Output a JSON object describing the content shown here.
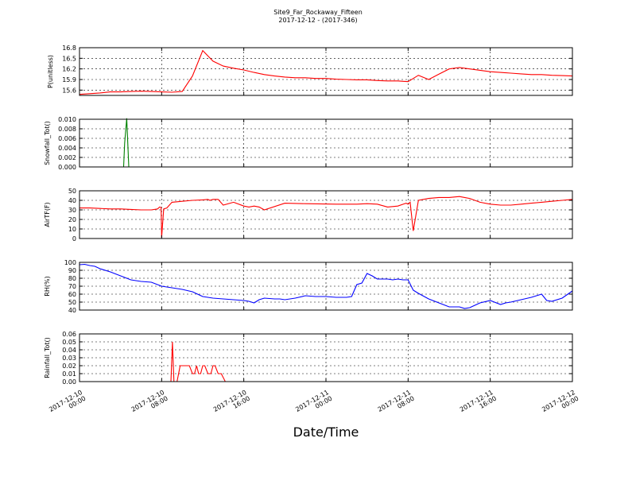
{
  "figure": {
    "title_line1": "Site9_Far_Rockaway_Fifteen",
    "title_line2": "2017-12-12 - (2017-346)",
    "xlabel": "Date/Time",
    "x_tick_labels": [
      [
        "2017-12-10",
        "00:00"
      ],
      [
        "2017-12-10",
        "08:00"
      ],
      [
        "2017-12-10",
        "16:00"
      ],
      [
        "2017-12-11",
        "00:00"
      ],
      [
        "2017-12-11",
        "08:00"
      ],
      [
        "2017-12-11",
        "16:00"
      ],
      [
        "2017-12-12",
        "00:00"
      ]
    ]
  },
  "chart_data": [
    {
      "type": "line",
      "ylabel": "P(unitless)",
      "ylim": [
        15.45,
        16.8
      ],
      "yticks": [
        "15.6",
        "15.9",
        "16.2",
        "16.5",
        "16.8"
      ],
      "ytick_values": [
        15.6,
        15.9,
        16.2,
        16.5,
        16.8
      ],
      "xlim": [
        0,
        48
      ],
      "grid": true,
      "color": "#ff0000",
      "x": [
        0,
        1,
        2,
        3,
        4,
        5,
        6,
        7,
        8,
        9,
        10,
        11,
        12,
        13,
        14,
        15,
        16,
        17,
        18,
        19,
        20,
        21,
        22,
        23,
        24,
        25,
        26,
        27,
        28,
        29,
        30,
        31,
        32,
        33,
        34,
        35,
        36,
        37,
        38,
        39,
        40,
        41,
        42,
        43,
        44,
        45,
        46,
        47,
        48
      ],
      "values": [
        15.48,
        15.5,
        15.52,
        15.55,
        15.55,
        15.56,
        15.57,
        15.56,
        15.55,
        15.54,
        15.56,
        16.0,
        16.72,
        16.42,
        16.28,
        16.22,
        16.17,
        16.1,
        16.04,
        16.0,
        15.97,
        15.95,
        15.95,
        15.93,
        15.93,
        15.91,
        15.9,
        15.89,
        15.89,
        15.87,
        15.86,
        15.86,
        15.84,
        16.02,
        15.9,
        16.05,
        16.2,
        16.24,
        16.2,
        16.16,
        16.12,
        16.1,
        16.08,
        16.06,
        16.04,
        16.04,
        16.02,
        16.01,
        16.0
      ]
    },
    {
      "type": "line",
      "ylabel": "Snowfall_Tot()",
      "ylim": [
        0,
        0.01
      ],
      "yticks": [
        "0.000",
        "0.002",
        "0.004",
        "0.006",
        "0.008",
        "0.010"
      ],
      "ytick_values": [
        0,
        0.002,
        0.004,
        0.006,
        0.008,
        0.01
      ],
      "xlim": [
        0,
        48
      ],
      "grid": true,
      "color": "#008000",
      "x": [
        0,
        4.3,
        4.4,
        4.6,
        4.8,
        48
      ],
      "values": [
        0,
        0,
        0.005,
        0.0102,
        0,
        0
      ]
    },
    {
      "type": "line",
      "ylabel": "AirTF(F)",
      "ylim": [
        0,
        50
      ],
      "yticks": [
        "0",
        "10",
        "20",
        "30",
        "40",
        "50"
      ],
      "ytick_values": [
        0,
        10,
        20,
        30,
        40,
        50
      ],
      "xlim": [
        0,
        48
      ],
      "grid": true,
      "color": "#ff0000",
      "x": [
        0,
        1,
        2,
        3,
        4,
        5,
        6,
        7,
        7.6,
        7.8,
        7.95,
        8.0,
        8.2,
        8.5,
        9,
        10,
        11,
        12,
        12.5,
        12.7,
        13,
        13.5,
        14,
        15,
        16,
        16.5,
        17,
        17.5,
        18,
        20,
        22,
        25,
        26,
        27,
        28,
        29,
        30,
        31,
        31.8,
        32,
        32.2,
        32.5,
        33,
        34,
        35,
        36,
        37,
        37.5,
        38,
        39,
        40,
        41,
        41.5,
        42,
        43,
        44,
        45,
        46,
        47,
        48
      ],
      "values": [
        32,
        32,
        31.5,
        31,
        31,
        30.5,
        30,
        30,
        31,
        33,
        32.5,
        1,
        31,
        32,
        38,
        39,
        40,
        40.5,
        41,
        40,
        41,
        41,
        35,
        38,
        34,
        33,
        34,
        33,
        30,
        37,
        36.5,
        36,
        36,
        36,
        36.5,
        36,
        33,
        34,
        37,
        36,
        38,
        8,
        40,
        42,
        43,
        43,
        44,
        43,
        42,
        38,
        36,
        35,
        35,
        35,
        36,
        37,
        38,
        39,
        40,
        41
      ]
    },
    {
      "type": "line",
      "ylabel": "RH(%)",
      "ylim": [
        40,
        100
      ],
      "yticks": [
        "40",
        "50",
        "60",
        "70",
        "80",
        "90",
        "100"
      ],
      "ytick_values": [
        40,
        50,
        60,
        70,
        80,
        90,
        100
      ],
      "xlim": [
        0,
        48
      ],
      "grid": true,
      "color": "#0000ff",
      "x": [
        0,
        0.5,
        1,
        1.5,
        2,
        3,
        4,
        5,
        6,
        7,
        8,
        8.5,
        9,
        10,
        11,
        11.5,
        12,
        13,
        14,
        15,
        16,
        16.5,
        17,
        17.5,
        18,
        19,
        19.5,
        20,
        21,
        22,
        23,
        24,
        25,
        26,
        26.5,
        27,
        27.5,
        28,
        28.5,
        29,
        30,
        30.5,
        31,
        31.5,
        32,
        32.5,
        33,
        34,
        35,
        36,
        37,
        37.5,
        38,
        38.5,
        39,
        40,
        41,
        41.5,
        42,
        43,
        44,
        45,
        45.5,
        46,
        47,
        48
      ],
      "values": [
        97,
        97.5,
        96,
        95,
        92,
        88,
        83,
        78,
        76,
        75,
        70,
        69,
        68,
        66,
        63,
        60,
        57,
        55,
        54,
        53,
        52,
        51,
        49,
        53,
        55,
        54,
        54,
        53,
        55,
        58,
        57,
        57,
        56,
        56,
        57,
        72,
        74,
        86,
        83,
        79,
        79,
        78,
        79,
        78,
        78,
        65,
        61,
        54,
        49,
        44,
        44,
        42,
        43,
        46,
        49,
        52,
        47,
        49,
        50,
        53,
        56,
        60,
        52,
        51,
        55,
        64
      ]
    },
    {
      "type": "line",
      "ylabel": "Rainfall_Tot()",
      "ylim": [
        0,
        0.06
      ],
      "yticks": [
        "0.00",
        "0.01",
        "0.02",
        "0.03",
        "0.04",
        "0.05",
        "0.06"
      ],
      "ytick_values": [
        0,
        0.01,
        0.02,
        0.03,
        0.04,
        0.05,
        0.06
      ],
      "xlim": [
        0,
        48
      ],
      "grid": true,
      "color": "#ff0000",
      "x": [
        0,
        8.9,
        9.05,
        9.2,
        9.4,
        9.5,
        9.8,
        10.5,
        10.7,
        11,
        11.2,
        11.4,
        11.6,
        11.8,
        12,
        12.2,
        12.5,
        12.8,
        13,
        13.2,
        13.5,
        13.8,
        14.2,
        48
      ],
      "values": [
        0,
        0,
        0.05,
        0,
        0,
        0,
        0.02,
        0.02,
        0.02,
        0.01,
        0.01,
        0.02,
        0.01,
        0.01,
        0.02,
        0.02,
        0.01,
        0.01,
        0.02,
        0.02,
        0.01,
        0.01,
        0,
        0
      ]
    }
  ]
}
